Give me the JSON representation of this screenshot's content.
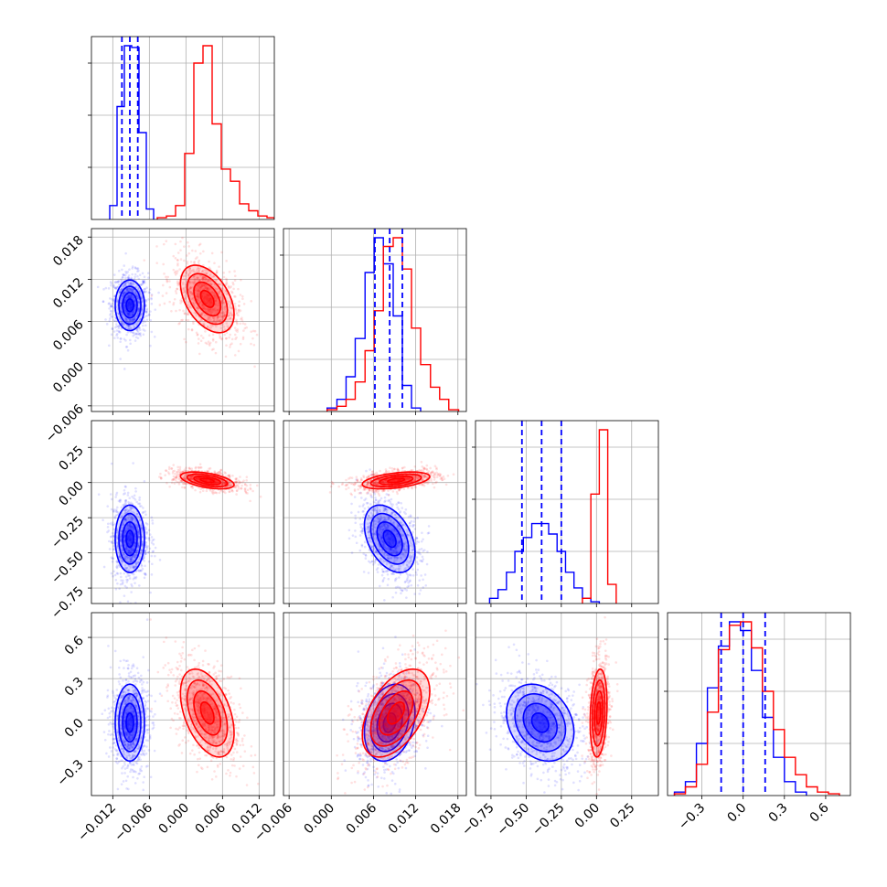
{
  "colors": {
    "blue": "#0000ff",
    "red": "#ff0000",
    "grid": "#b0b0b0",
    "axes": "#000000"
  },
  "chart_data": {
    "type": "corner",
    "grid": true,
    "parameters": [
      {
        "index": 0,
        "range": [
          -0.0155,
          0.0145
        ],
        "ticks": [
          -0.012,
          -0.006,
          0.0,
          0.006,
          0.012
        ],
        "tick_labels": [
          "−0.012",
          "−0.006",
          "0.000",
          "0.006",
          "0.012"
        ]
      },
      {
        "index": 1,
        "range": [
          -0.0068,
          0.0192
        ],
        "ticks": [
          -0.006,
          0.0,
          0.006,
          0.012,
          0.018
        ],
        "tick_labels": [
          "−0.006",
          "0.000",
          "0.006",
          "0.012",
          "0.018"
        ]
      },
      {
        "index": 2,
        "range": [
          -0.86,
          0.44
        ],
        "ticks": [
          -0.75,
          -0.5,
          -0.25,
          0.0,
          0.25
        ],
        "tick_labels": [
          "−0.75",
          "−0.50",
          "−0.25",
          "0.00",
          "0.25"
        ]
      },
      {
        "index": 3,
        "range": [
          -0.55,
          0.78
        ],
        "ticks": [
          -0.3,
          0.0,
          0.3,
          0.6
        ],
        "tick_labels": [
          "−0.3",
          "0.0",
          "0.3",
          "0.6"
        ]
      }
    ],
    "series": [
      {
        "color": "blue",
        "means": [
          -0.0092,
          0.0083,
          -0.4,
          -0.02
        ],
        "sigmas": [
          0.0012,
          0.0018,
          0.12,
          0.14
        ],
        "correlations": {
          "1,0": 0.0,
          "2,0": 0.0,
          "2,1": -0.4,
          "3,0": 0.0,
          "3,1": 0.25,
          "3,2": -0.25
        },
        "quantiles": [
          [
            -0.0105,
            -0.0092,
            -0.0079
          ],
          [
            0.0062,
            0.0083,
            0.0101
          ],
          [
            -0.53,
            -0.39,
            -0.25
          ],
          [
            -0.16,
            -0.0,
            0.16
          ]
        ]
      },
      {
        "color": "red",
        "means": [
          0.0035,
          0.0092,
          0.015,
          0.05
        ],
        "sigmas": [
          0.0022,
          0.0024,
          0.03,
          0.16
        ],
        "correlations": {
          "1,0": -0.45,
          "2,0": -0.5,
          "2,1": 0.45,
          "3,0": -0.45,
          "3,1": 0.5,
          "3,2": 0.2
        },
        "quantiles": []
      }
    ],
    "histograms": {
      "0": {
        "blue": {
          "bins": [
            -0.0125,
            -0.0113,
            -0.0101,
            -0.0089,
            -0.0077,
            -0.0065,
            -0.0053
          ],
          "counts": [
            0.08,
            0.65,
            1.0,
            0.99,
            0.5,
            0.06
          ]
        },
        "red": {
          "bins": [
            -0.0047,
            -0.0032,
            -0.0017,
            -0.0002,
            0.0013,
            0.0028,
            0.0043,
            0.0058,
            0.0073,
            0.0088,
            0.0103,
            0.0118,
            0.0133,
            0.0145
          ],
          "counts": [
            0.01,
            0.02,
            0.08,
            0.38,
            0.9,
            1.0,
            0.55,
            0.29,
            0.22,
            0.09,
            0.05,
            0.02,
            0.01
          ]
        }
      },
      "1": {
        "blue": {
          "bins": [
            -0.0006,
            0.0008,
            0.0021,
            0.0034,
            0.0048,
            0.0061,
            0.0074,
            0.0088,
            0.0101,
            0.0114,
            0.0127
          ],
          "counts": [
            0.02,
            0.07,
            0.2,
            0.42,
            0.8,
            1.0,
            0.85,
            0.55,
            0.15,
            0.02
          ]
        },
        "red": {
          "bins": [
            -0.0006,
            0.0008,
            0.0021,
            0.0034,
            0.0048,
            0.0061,
            0.0074,
            0.0088,
            0.0101,
            0.0114,
            0.0127,
            0.0141,
            0.0154,
            0.0167,
            0.0181
          ],
          "counts": [
            0.01,
            0.03,
            0.07,
            0.17,
            0.35,
            0.58,
            0.95,
            1.0,
            0.82,
            0.48,
            0.27,
            0.14,
            0.07,
            0.01
          ]
        }
      },
      "2": {
        "blue": {
          "bins": [
            -0.76,
            -0.7,
            -0.64,
            -0.58,
            -0.52,
            -0.46,
            -0.4,
            -0.34,
            -0.28,
            -0.22,
            -0.16,
            -0.1,
            -0.04,
            0.02
          ],
          "counts": [
            0.03,
            0.08,
            0.18,
            0.3,
            0.38,
            0.46,
            0.46,
            0.4,
            0.3,
            0.18,
            0.09,
            0.03,
            0.01
          ]
        },
        "red": {
          "bins": [
            -0.1,
            -0.04,
            0.02,
            0.08,
            0.14
          ],
          "counts": [
            0.03,
            0.63,
            1.0,
            0.11
          ]
        }
      },
      "3": {
        "blue": {
          "bins": [
            -0.5,
            -0.42,
            -0.34,
            -0.26,
            -0.18,
            -0.1,
            -0.02,
            0.06,
            0.14,
            0.22,
            0.3,
            0.38,
            0.46
          ],
          "counts": [
            0.02,
            0.08,
            0.3,
            0.62,
            0.86,
            1.0,
            0.95,
            0.72,
            0.45,
            0.22,
            0.08,
            0.02
          ]
        },
        "red": {
          "bins": [
            -0.5,
            -0.42,
            -0.34,
            -0.26,
            -0.18,
            -0.1,
            -0.02,
            0.06,
            0.14,
            0.22,
            0.3,
            0.38,
            0.46,
            0.54,
            0.62,
            0.7
          ],
          "counts": [
            0.01,
            0.05,
            0.18,
            0.48,
            0.84,
            0.98,
            1.0,
            0.85,
            0.6,
            0.38,
            0.22,
            0.12,
            0.05,
            0.02,
            0.01
          ]
        }
      }
    }
  }
}
